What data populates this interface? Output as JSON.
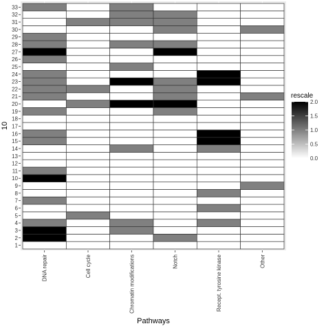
{
  "chart_data": {
    "type": "heatmap",
    "xlabel": "Pathways",
    "ylabel": "10",
    "categories": [
      "DNA repair",
      "Cell cycle",
      "Chromatin modifications",
      "Notch",
      "Recept. tyrosine kinase",
      "Other"
    ],
    "rows": [
      "1",
      "2",
      "3",
      "4",
      "5",
      "6",
      "7",
      "8",
      "9",
      "10",
      "11",
      "12",
      "13",
      "14",
      "15",
      "16",
      "17",
      "18",
      "19",
      "20",
      "21",
      "22",
      "23",
      "24",
      "25",
      "26",
      "27",
      "28",
      "29",
      "30",
      "31",
      "32",
      "33"
    ],
    "values": [
      [
        0,
        0,
        0,
        0,
        0,
        0
      ],
      [
        2,
        0,
        0,
        1,
        0,
        0
      ],
      [
        2,
        0,
        1,
        0,
        0,
        0
      ],
      [
        1,
        0,
        1,
        0,
        1,
        0
      ],
      [
        0,
        1,
        0,
        0,
        0,
        0
      ],
      [
        0,
        0,
        0,
        0,
        1,
        0
      ],
      [
        1,
        0,
        0,
        0,
        0,
        0
      ],
      [
        0,
        0,
        0,
        0,
        1,
        0
      ],
      [
        0,
        0,
        0,
        0,
        0,
        1
      ],
      [
        2,
        0,
        0,
        0,
        0,
        0
      ],
      [
        1,
        0,
        0,
        0,
        0,
        0
      ],
      [
        0,
        0,
        0,
        0,
        0,
        0
      ],
      [
        0,
        0,
        0,
        0,
        0,
        0
      ],
      [
        0,
        0,
        1,
        0,
        1,
        0
      ],
      [
        1,
        0,
        0,
        0,
        2,
        0
      ],
      [
        1,
        0,
        0,
        0,
        2,
        0
      ],
      [
        0,
        0,
        0,
        0,
        0,
        0
      ],
      [
        0,
        0,
        0,
        0,
        0,
        0
      ],
      [
        1,
        0,
        0,
        1,
        0,
        0
      ],
      [
        0,
        1,
        2,
        2,
        0,
        0
      ],
      [
        1,
        0,
        0,
        1,
        0,
        1
      ],
      [
        1,
        1,
        0,
        1,
        0,
        0
      ],
      [
        1,
        0,
        2,
        1,
        2,
        0
      ],
      [
        1,
        0,
        0,
        0,
        2,
        0
      ],
      [
        0,
        0,
        1,
        0,
        0,
        0
      ],
      [
        1,
        0,
        0,
        0,
        0,
        0
      ],
      [
        2,
        0,
        0,
        2,
        0,
        0
      ],
      [
        1,
        0,
        1,
        1,
        0,
        0
      ],
      [
        1,
        0,
        0,
        0,
        0,
        0
      ],
      [
        0,
        0,
        0,
        1,
        0,
        1
      ],
      [
        0,
        1,
        1,
        1,
        0,
        0
      ],
      [
        0,
        0,
        1,
        1,
        0,
        0
      ],
      [
        1,
        0,
        1,
        0,
        0,
        0
      ]
    ],
    "legend": {
      "title": "rescale",
      "ticks": [
        "2.0",
        "1.5",
        "1.0",
        "0.5",
        "0.0"
      ],
      "tick_values": [
        2.0,
        1.5,
        1.0,
        0.5,
        0.0
      ],
      "range": [
        0,
        2
      ],
      "position": "right",
      "low_color": "#ffffff",
      "high_color": "#000000"
    },
    "panel_background": "#ebebeb",
    "cell_border_color": "#333333",
    "grid": true
  }
}
